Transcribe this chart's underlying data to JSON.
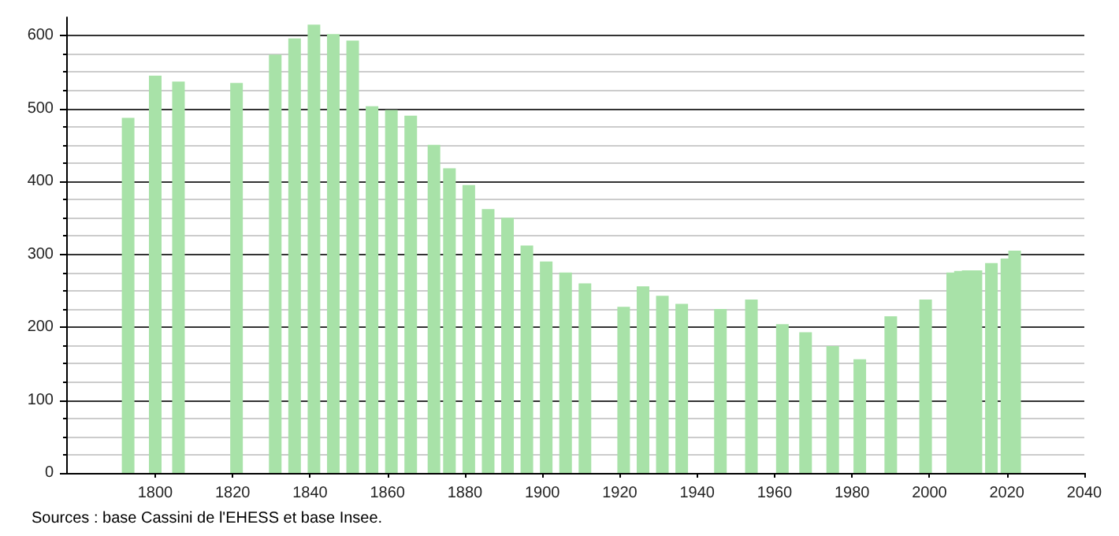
{
  "chart_data": {
    "type": "bar",
    "x": [
      1793,
      1800,
      1806,
      1821,
      1831,
      1836,
      1841,
      1846,
      1851,
      1856,
      1861,
      1866,
      1872,
      1876,
      1881,
      1886,
      1891,
      1896,
      1901,
      1906,
      1911,
      1921,
      1926,
      1931,
      1936,
      1946,
      1954,
      1962,
      1968,
      1975,
      1982,
      1990,
      1999,
      2006,
      2008,
      2010,
      2012,
      2016,
      2020,
      2022
    ],
    "values": [
      487,
      545,
      537,
      535,
      574,
      596,
      615,
      602,
      593,
      503,
      498,
      490,
      450,
      418,
      395,
      362,
      350,
      312,
      290,
      275,
      260,
      228,
      256,
      243,
      232,
      225,
      238,
      204,
      193,
      174,
      156,
      215,
      238,
      275,
      277,
      278,
      278,
      288,
      294,
      305
    ],
    "color": "#a8e2a8",
    "xlim": [
      1777,
      2040
    ],
    "xticks": [
      1800,
      1820,
      1840,
      1860,
      1880,
      1900,
      1920,
      1940,
      1960,
      1980,
      2000,
      2020,
      2040
    ],
    "ylim": [
      0,
      625
    ],
    "yticks": [
      0,
      100,
      200,
      300,
      400,
      500,
      600
    ],
    "grid": "y",
    "annotations": [
      "Sources : base Cassini de l'EHESS et base Insee."
    ]
  }
}
